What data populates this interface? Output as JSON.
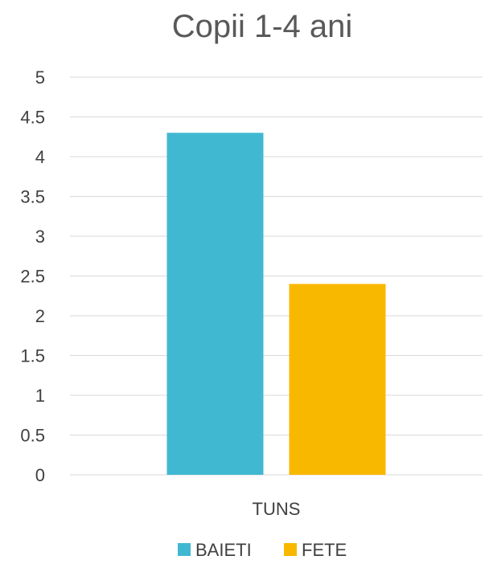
{
  "chart_data": {
    "type": "bar",
    "title": "Copii 1-4 ani",
    "categories": [
      "TUNS"
    ],
    "series": [
      {
        "name": "BAIETI",
        "values": [
          4.3
        ],
        "color": "#41b8d1"
      },
      {
        "name": "FETE",
        "values": [
          2.4
        ],
        "color": "#f8b800"
      }
    ],
    "ylim": [
      0,
      5
    ],
    "yticks": [
      "0",
      "0.5",
      "1",
      "1.5",
      "2",
      "2.5",
      "3",
      "3.5",
      "4",
      "4.5",
      "5"
    ],
    "grid": true,
    "legend": "bottom"
  }
}
